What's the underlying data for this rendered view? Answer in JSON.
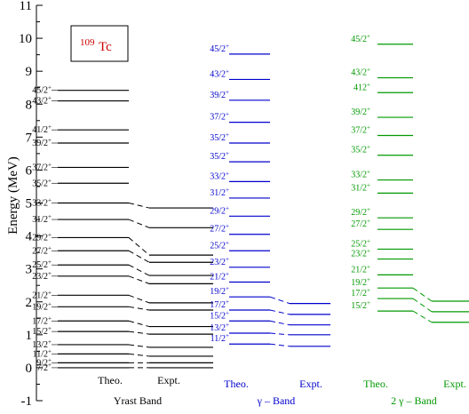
{
  "nucleus": {
    "mass": "109",
    "symbol": "Tc"
  },
  "axis": {
    "ylabel": "Energy (MeV)",
    "yticks": [
      "-1",
      "0",
      "1",
      "2",
      "3",
      "4",
      "5",
      "6",
      "7",
      "8",
      "9",
      "10",
      "11"
    ]
  },
  "colors": {
    "yrast": "#000000",
    "gamma": "#0000cc",
    "gamma2": "#009900"
  },
  "chart_data": {
    "type": "level-scheme",
    "ylabel": "Energy (MeV)",
    "ylim": [
      -1,
      11
    ],
    "bands": [
      {
        "name": "Yrast Band",
        "color": "#000000",
        "theo_label": "Theo.",
        "expt_label": "Expt.",
        "theo": [
          {
            "spin": "7/2",
            "E": 0.0
          },
          {
            "spin": "9/2",
            "E": 0.15
          },
          {
            "spin": "11/2",
            "E": 0.42
          },
          {
            "spin": "13/2",
            "E": 0.7
          },
          {
            "spin": "15/2",
            "E": 1.1
          },
          {
            "spin": "17/2",
            "E": 1.42
          },
          {
            "spin": "19/2",
            "E": 1.85
          },
          {
            "spin": "21/2",
            "E": 2.2
          },
          {
            "spin": "23/2",
            "E": 2.78
          },
          {
            "spin": "25/2",
            "E": 3.12
          },
          {
            "spin": "27/2",
            "E": 3.55
          },
          {
            "spin": "29/2",
            "E": 3.95
          },
          {
            "spin": "31/2",
            "E": 4.5
          },
          {
            "spin": "33/2",
            "E": 5.0
          },
          {
            "spin": "35/2",
            "E": 5.6
          },
          {
            "spin": "37/2",
            "E": 6.08
          },
          {
            "spin": "39/2",
            "E": 6.82
          },
          {
            "spin": "41/2",
            "E": 7.22
          },
          {
            "spin": "43/2",
            "E": 8.1
          },
          {
            "spin": "45/2",
            "E": 8.42
          }
        ],
        "expt": [
          {
            "spin": "7/2",
            "E": 0.0
          },
          {
            "spin": "9/2",
            "E": 0.15
          },
          {
            "spin": "11/2",
            "E": 0.35
          },
          {
            "spin": "13/2",
            "E": 0.62
          },
          {
            "spin": "15/2",
            "E": 1.02
          },
          {
            "spin": "17/2",
            "E": 1.25
          },
          {
            "spin": "19/2",
            "E": 1.75
          },
          {
            "spin": "21/2",
            "E": 1.97
          },
          {
            "spin": "23/2",
            "E": 2.55
          },
          {
            "spin": "25/2",
            "E": 2.8
          },
          {
            "spin": "27/2",
            "E": 3.2
          },
          {
            "spin": "29/2",
            "E": 3.42
          },
          {
            "spin": "31/2",
            "E": 4.25
          },
          {
            "spin": "33/2",
            "E": 4.85
          }
        ]
      },
      {
        "name": "γ – Band",
        "color": "#0000cc",
        "theo_label": "Theo.",
        "expt_label": "Expt.",
        "theo": [
          {
            "spin": "11/2",
            "E": 0.72
          },
          {
            "spin": "13/2",
            "E": 1.05
          },
          {
            "spin": "15/2",
            "E": 1.42
          },
          {
            "spin": "17/2",
            "E": 1.75
          },
          {
            "spin": "19/2",
            "E": 2.15
          },
          {
            "spin": "21/2",
            "E": 2.6
          },
          {
            "spin": "23/2",
            "E": 3.05
          },
          {
            "spin": "25/2",
            "E": 3.55
          },
          {
            "spin": "27/2",
            "E": 4.05
          },
          {
            "spin": "29/2",
            "E": 4.6
          },
          {
            "spin": "31/2",
            "E": 5.15
          },
          {
            "spin": "33/2",
            "E": 5.65
          },
          {
            "spin": "35/2",
            "E": 6.25
          },
          {
            "spin": "35/2",
            "E": 6.82
          },
          {
            "spin": "37/2",
            "E": 7.45
          },
          {
            "spin": "39/2",
            "E": 8.12
          },
          {
            "spin": "43/2",
            "E": 8.75
          },
          {
            "spin": "45/2",
            "E": 9.52
          }
        ],
        "expt": [
          {
            "spin": "11/2",
            "E": 0.65
          },
          {
            "spin": "13/2",
            "E": 1.0
          },
          {
            "spin": "15/2",
            "E": 1.3
          },
          {
            "spin": "17/2",
            "E": 1.62
          },
          {
            "spin": "19/2",
            "E": 1.95
          }
        ]
      },
      {
        "name": "2 γ – Band",
        "color": "#009900",
        "theo_label": "Theo.",
        "expt_label": "Expt.",
        "theo": [
          {
            "spin": "15/2",
            "E": 1.72
          },
          {
            "spin": "17/2",
            "E": 2.1
          },
          {
            "spin": "19/2",
            "E": 2.42
          },
          {
            "spin": "21/2",
            "E": 2.82
          },
          {
            "spin": "23/2",
            "E": 3.3
          },
          {
            "spin": "25/2",
            "E": 3.6
          },
          {
            "spin": "27/2",
            "E": 4.2
          },
          {
            "spin": "29/2",
            "E": 4.55
          },
          {
            "spin": "31/2",
            "E": 5.3
          },
          {
            "spin": "33/2",
            "E": 5.7
          },
          {
            "spin": "35/2",
            "E": 6.45
          },
          {
            "spin": "37/2",
            "E": 7.05
          },
          {
            "spin": "39/2",
            "E": 7.6
          },
          {
            "spin": "412",
            "E": 8.35
          },
          {
            "spin": "43/2",
            "E": 8.8
          },
          {
            "spin": "45/2",
            "E": 9.82
          }
        ],
        "expt": [
          {
            "spin": "15/2",
            "E": 1.38
          },
          {
            "spin": "17/2",
            "E": 1.7
          },
          {
            "spin": "19/2",
            "E": 2.02
          }
        ]
      }
    ]
  }
}
